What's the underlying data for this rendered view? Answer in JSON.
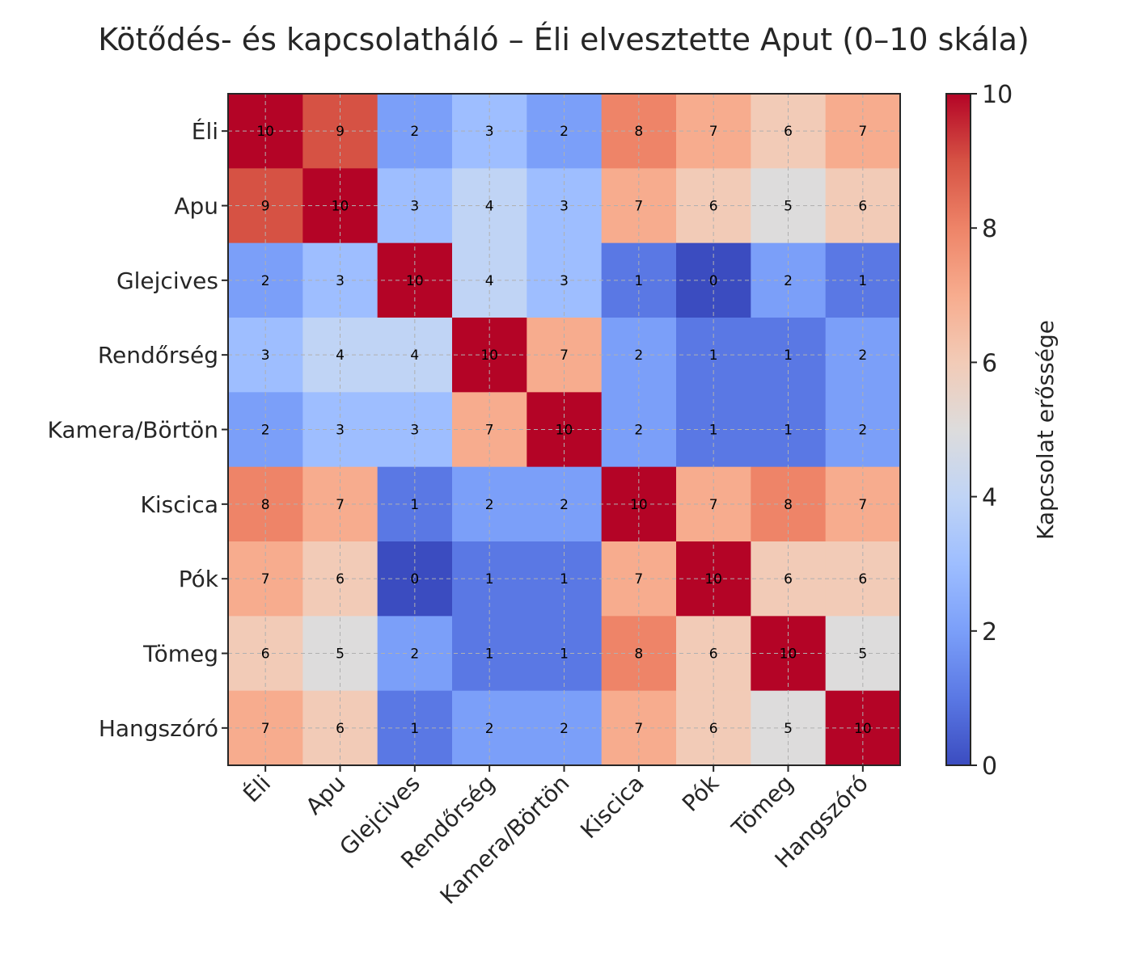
{
  "chart_data": {
    "type": "heatmap",
    "title": "Kötődés- és kapcsolatháló – Éli elvesztette Aput (0–10 skála)",
    "xlabel": "",
    "ylabel": "",
    "colormap": "coolwarm",
    "vmin": 0,
    "vmax": 10,
    "grid": true,
    "rows": [
      "Éli",
      "Apu",
      "Glejcives",
      "Rendőrség",
      "Kamera/Börtön",
      "Kiscica",
      "Pók",
      "Tömeg",
      "Hangszóró"
    ],
    "columns": [
      "Éli",
      "Apu",
      "Glejcives",
      "Rendőrség",
      "Kamera/Börtön",
      "Kiscica",
      "Pók",
      "Tömeg",
      "Hangszóró"
    ],
    "values": [
      [
        10,
        9,
        2,
        3,
        2,
        8,
        7,
        6,
        7
      ],
      [
        9,
        10,
        3,
        4,
        3,
        7,
        6,
        5,
        6
      ],
      [
        2,
        3,
        10,
        4,
        3,
        1,
        0,
        2,
        1
      ],
      [
        3,
        4,
        4,
        10,
        7,
        2,
        1,
        1,
        2
      ],
      [
        2,
        3,
        3,
        7,
        10,
        2,
        1,
        1,
        2
      ],
      [
        8,
        7,
        1,
        2,
        2,
        10,
        7,
        8,
        7
      ],
      [
        7,
        6,
        0,
        1,
        1,
        7,
        10,
        6,
        6
      ],
      [
        6,
        5,
        2,
        1,
        1,
        8,
        6,
        10,
        5
      ],
      [
        7,
        6,
        1,
        2,
        2,
        7,
        6,
        5,
        10
      ]
    ],
    "colorbar": {
      "label": "Kapcsolat erőssége",
      "ticks": [
        "0",
        "2",
        "4",
        "6",
        "8",
        "10"
      ]
    }
  }
}
